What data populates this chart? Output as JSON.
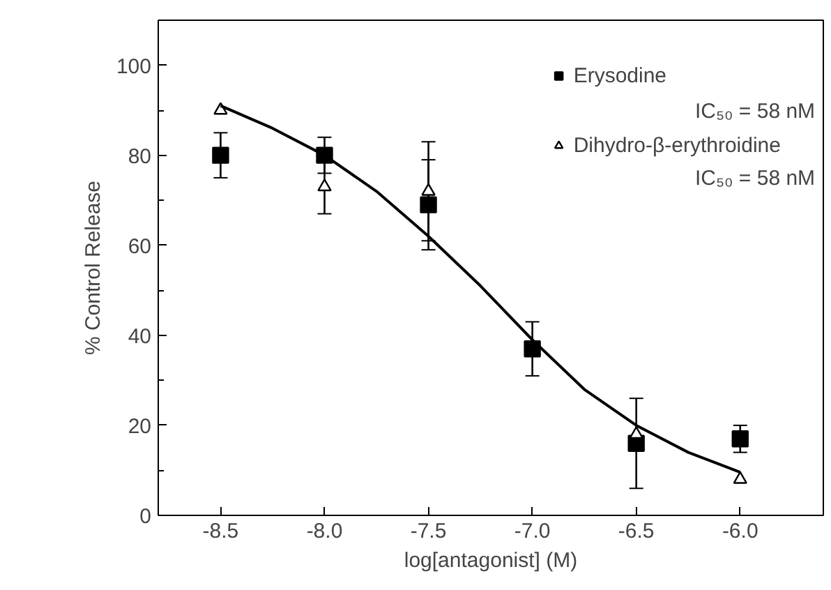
{
  "chart_data": {
    "type": "scatter",
    "xlabel": "log[antagonist] (M)",
    "ylabel": "% Control Release",
    "xlim": [
      -8.8,
      -5.6
    ],
    "ylim": [
      0,
      110
    ],
    "xticks": [
      {
        "value": -8.5,
        "label": "-8.5"
      },
      {
        "value": -8.0,
        "label": "-8.0"
      },
      {
        "value": -7.5,
        "label": "-7.5"
      },
      {
        "value": -7.0,
        "label": "-7.0"
      },
      {
        "value": -6.5,
        "label": "-6.5"
      },
      {
        "value": -6.0,
        "label": "-6.0"
      }
    ],
    "yticks": [
      0,
      20,
      40,
      60,
      80,
      100
    ],
    "grid": false,
    "legend": "top right",
    "x": [
      -8.5,
      -8.0,
      -7.5,
      -7.0,
      -6.5,
      -6.0
    ],
    "series": [
      {
        "name": "Erysodine",
        "color": "#000000",
        "marker": "square",
        "values": [
          80,
          80,
          69,
          37,
          16,
          17
        ],
        "errors": [
          5,
          4,
          10,
          6,
          10,
          3
        ]
      },
      {
        "name": "Dihydro-β-erythroidine",
        "color": "#000000",
        "marker": "triangle",
        "values": [
          90,
          73,
          72,
          null,
          18,
          8
        ],
        "errors": [
          null,
          6,
          11,
          null,
          null,
          null
        ]
      },
      {
        "type": "line",
        "color": "#000000",
        "x": [
          -8.5,
          -8.25,
          -8.0,
          -7.75,
          -7.5,
          -7.25,
          -7.0,
          -6.75,
          -6.5,
          -6.25,
          -6.0
        ],
        "values": [
          91,
          86,
          80,
          72,
          62,
          51,
          39,
          28,
          20,
          14,
          9.6
        ]
      }
    ],
    "annotations": [
      "IC₅₀ = 58 nM",
      "IC₅₀ = 58 nM"
    ]
  }
}
